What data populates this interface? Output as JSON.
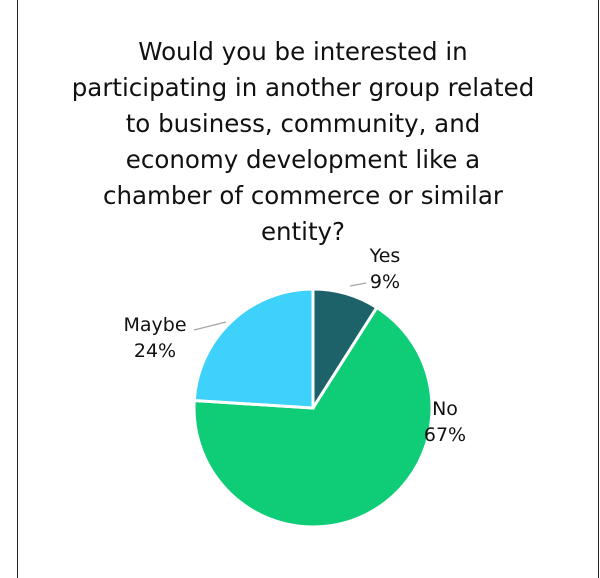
{
  "chart_data": {
    "type": "pie",
    "title": "Would you be interested in participating in another group related to business, community, and economy development like a chamber of commerce or similar entity?",
    "categories": [
      "Yes",
      "No",
      "Maybe"
    ],
    "values": [
      9,
      67,
      24
    ],
    "data_labels": [
      "9%",
      "67%",
      "24%"
    ],
    "colors": [
      "#1d6169",
      "#0fcc77",
      "#3dd1fb"
    ],
    "legend": "none"
  }
}
